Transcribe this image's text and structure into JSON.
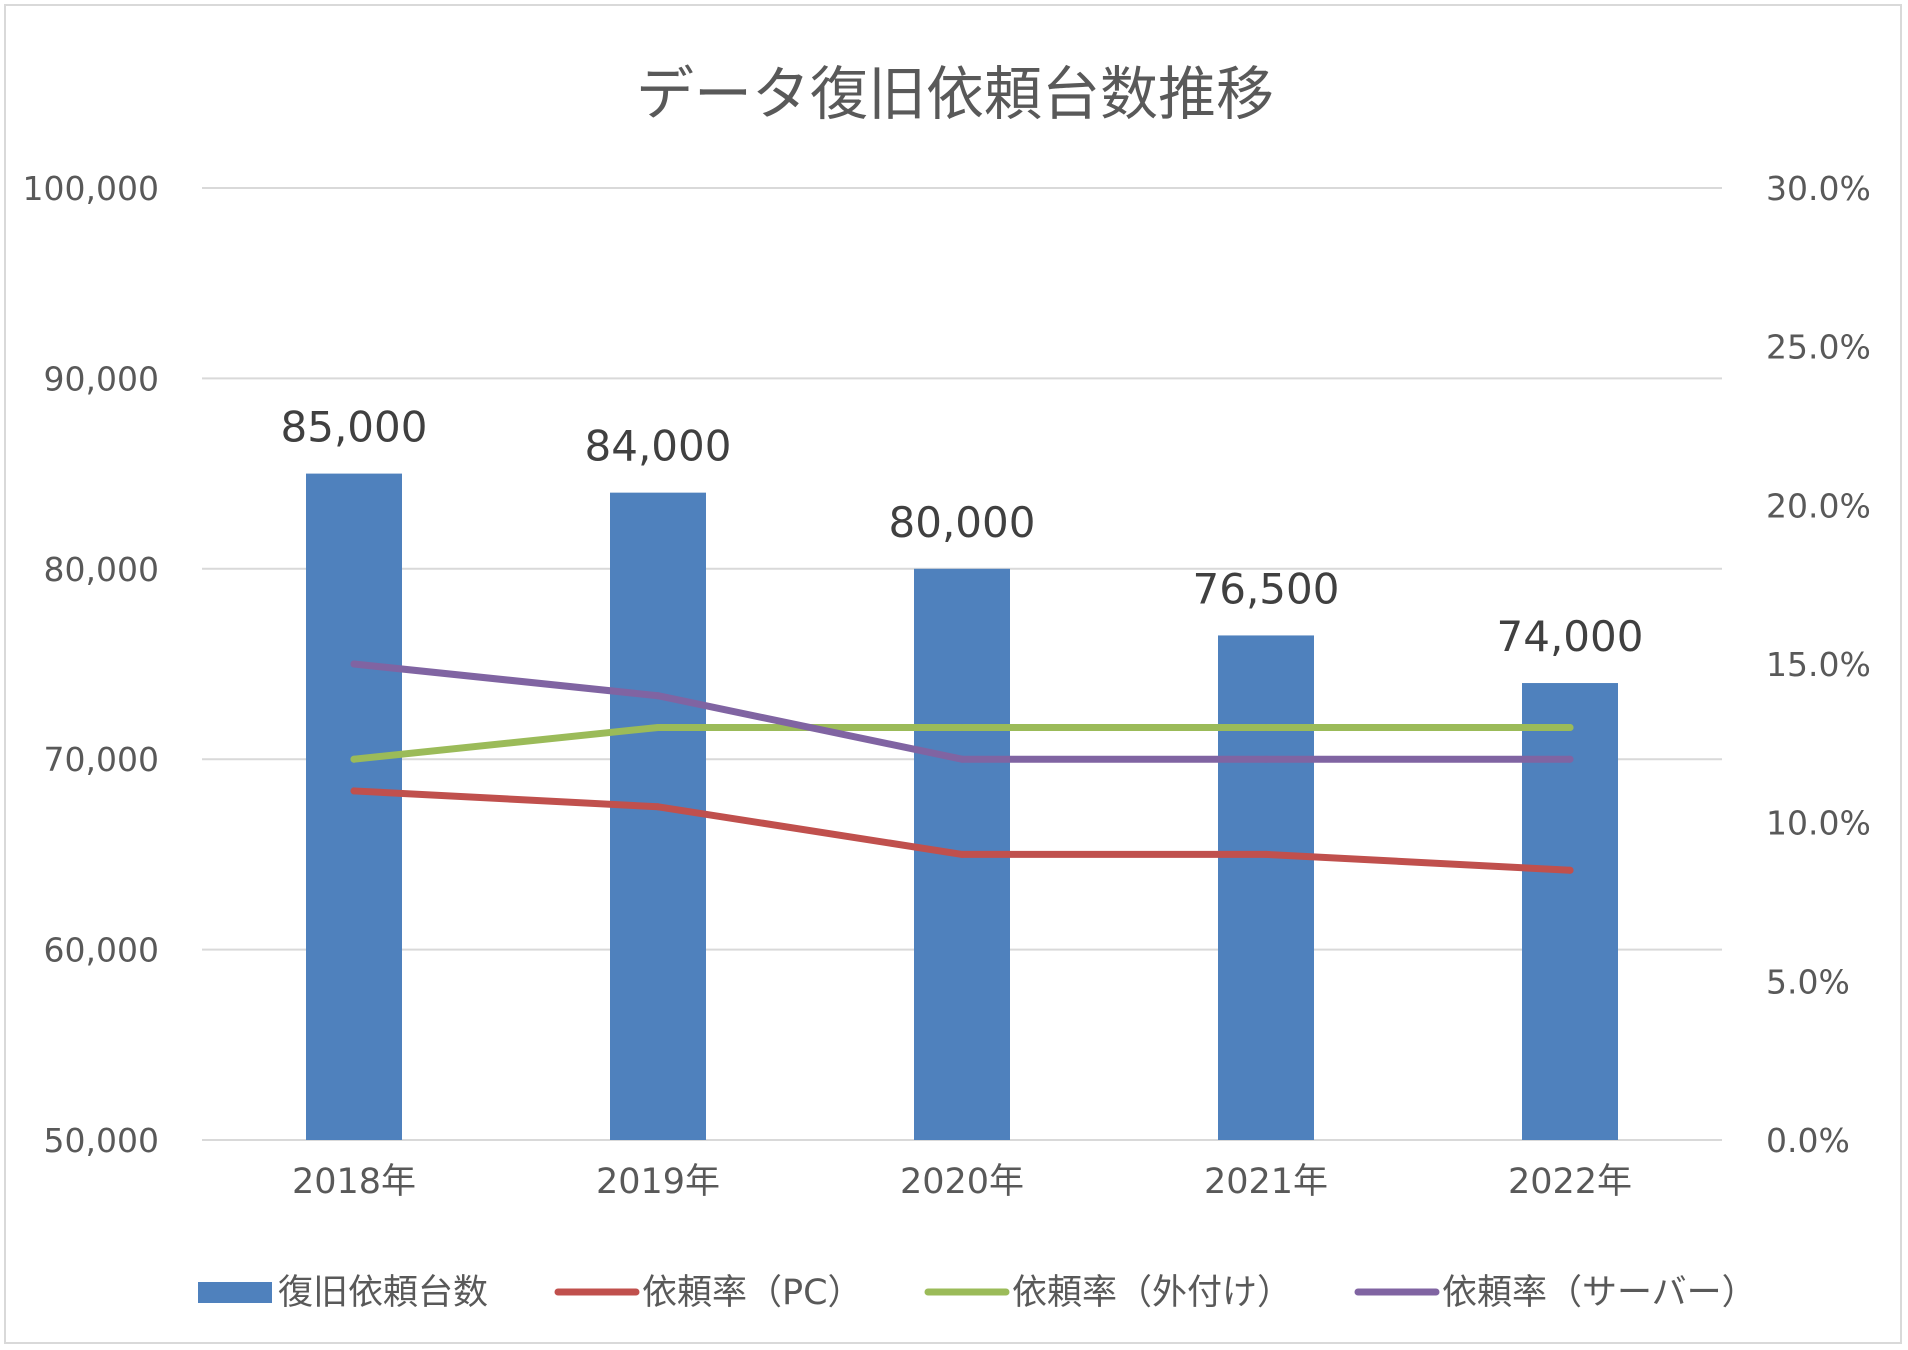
{
  "chart_data": {
    "type": "bar",
    "title": "データ復旧依頼台数推移",
    "categories": [
      "2018年",
      "2019年",
      "2020年",
      "2021年",
      "2022年"
    ],
    "bar_series": {
      "name": "復旧依頼台数",
      "values": [
        85000,
        84000,
        80000,
        76500,
        74000
      ],
      "data_labels": [
        "85,000",
        "84,000",
        "80,000",
        "76,500",
        "74,000"
      ],
      "color": "#4f81bd"
    },
    "line_series": [
      {
        "name": "依頼率（PC）",
        "values": [
          11.0,
          10.5,
          9.0,
          9.0,
          8.5
        ],
        "color": "#c0504d"
      },
      {
        "name": "依頼率（外付け）",
        "values": [
          12.0,
          13.0,
          13.0,
          13.0,
          13.0
        ],
        "color": "#9bbb59"
      },
      {
        "name": "依頼率（サーバー）",
        "values": [
          15.0,
          14.0,
          12.0,
          12.0,
          12.0
        ],
        "color": "#8064a2"
      }
    ],
    "y_left": {
      "ylim": [
        50000,
        100000
      ],
      "ticks": [
        50000,
        60000,
        70000,
        80000,
        90000,
        100000
      ],
      "tick_labels": [
        "50,000",
        "60,000",
        "70,000",
        "80,000",
        "90,000",
        "100,000"
      ]
    },
    "y_right": {
      "ylim": [
        0,
        30
      ],
      "ticks": [
        0,
        5,
        10,
        15,
        20,
        25,
        30
      ],
      "tick_labels": [
        "0.0%",
        "5.0%",
        "10.0%",
        "15.0%",
        "20.0%",
        "25.0%",
        "30.0%"
      ]
    },
    "grid": true,
    "legend_position": "bottom"
  }
}
